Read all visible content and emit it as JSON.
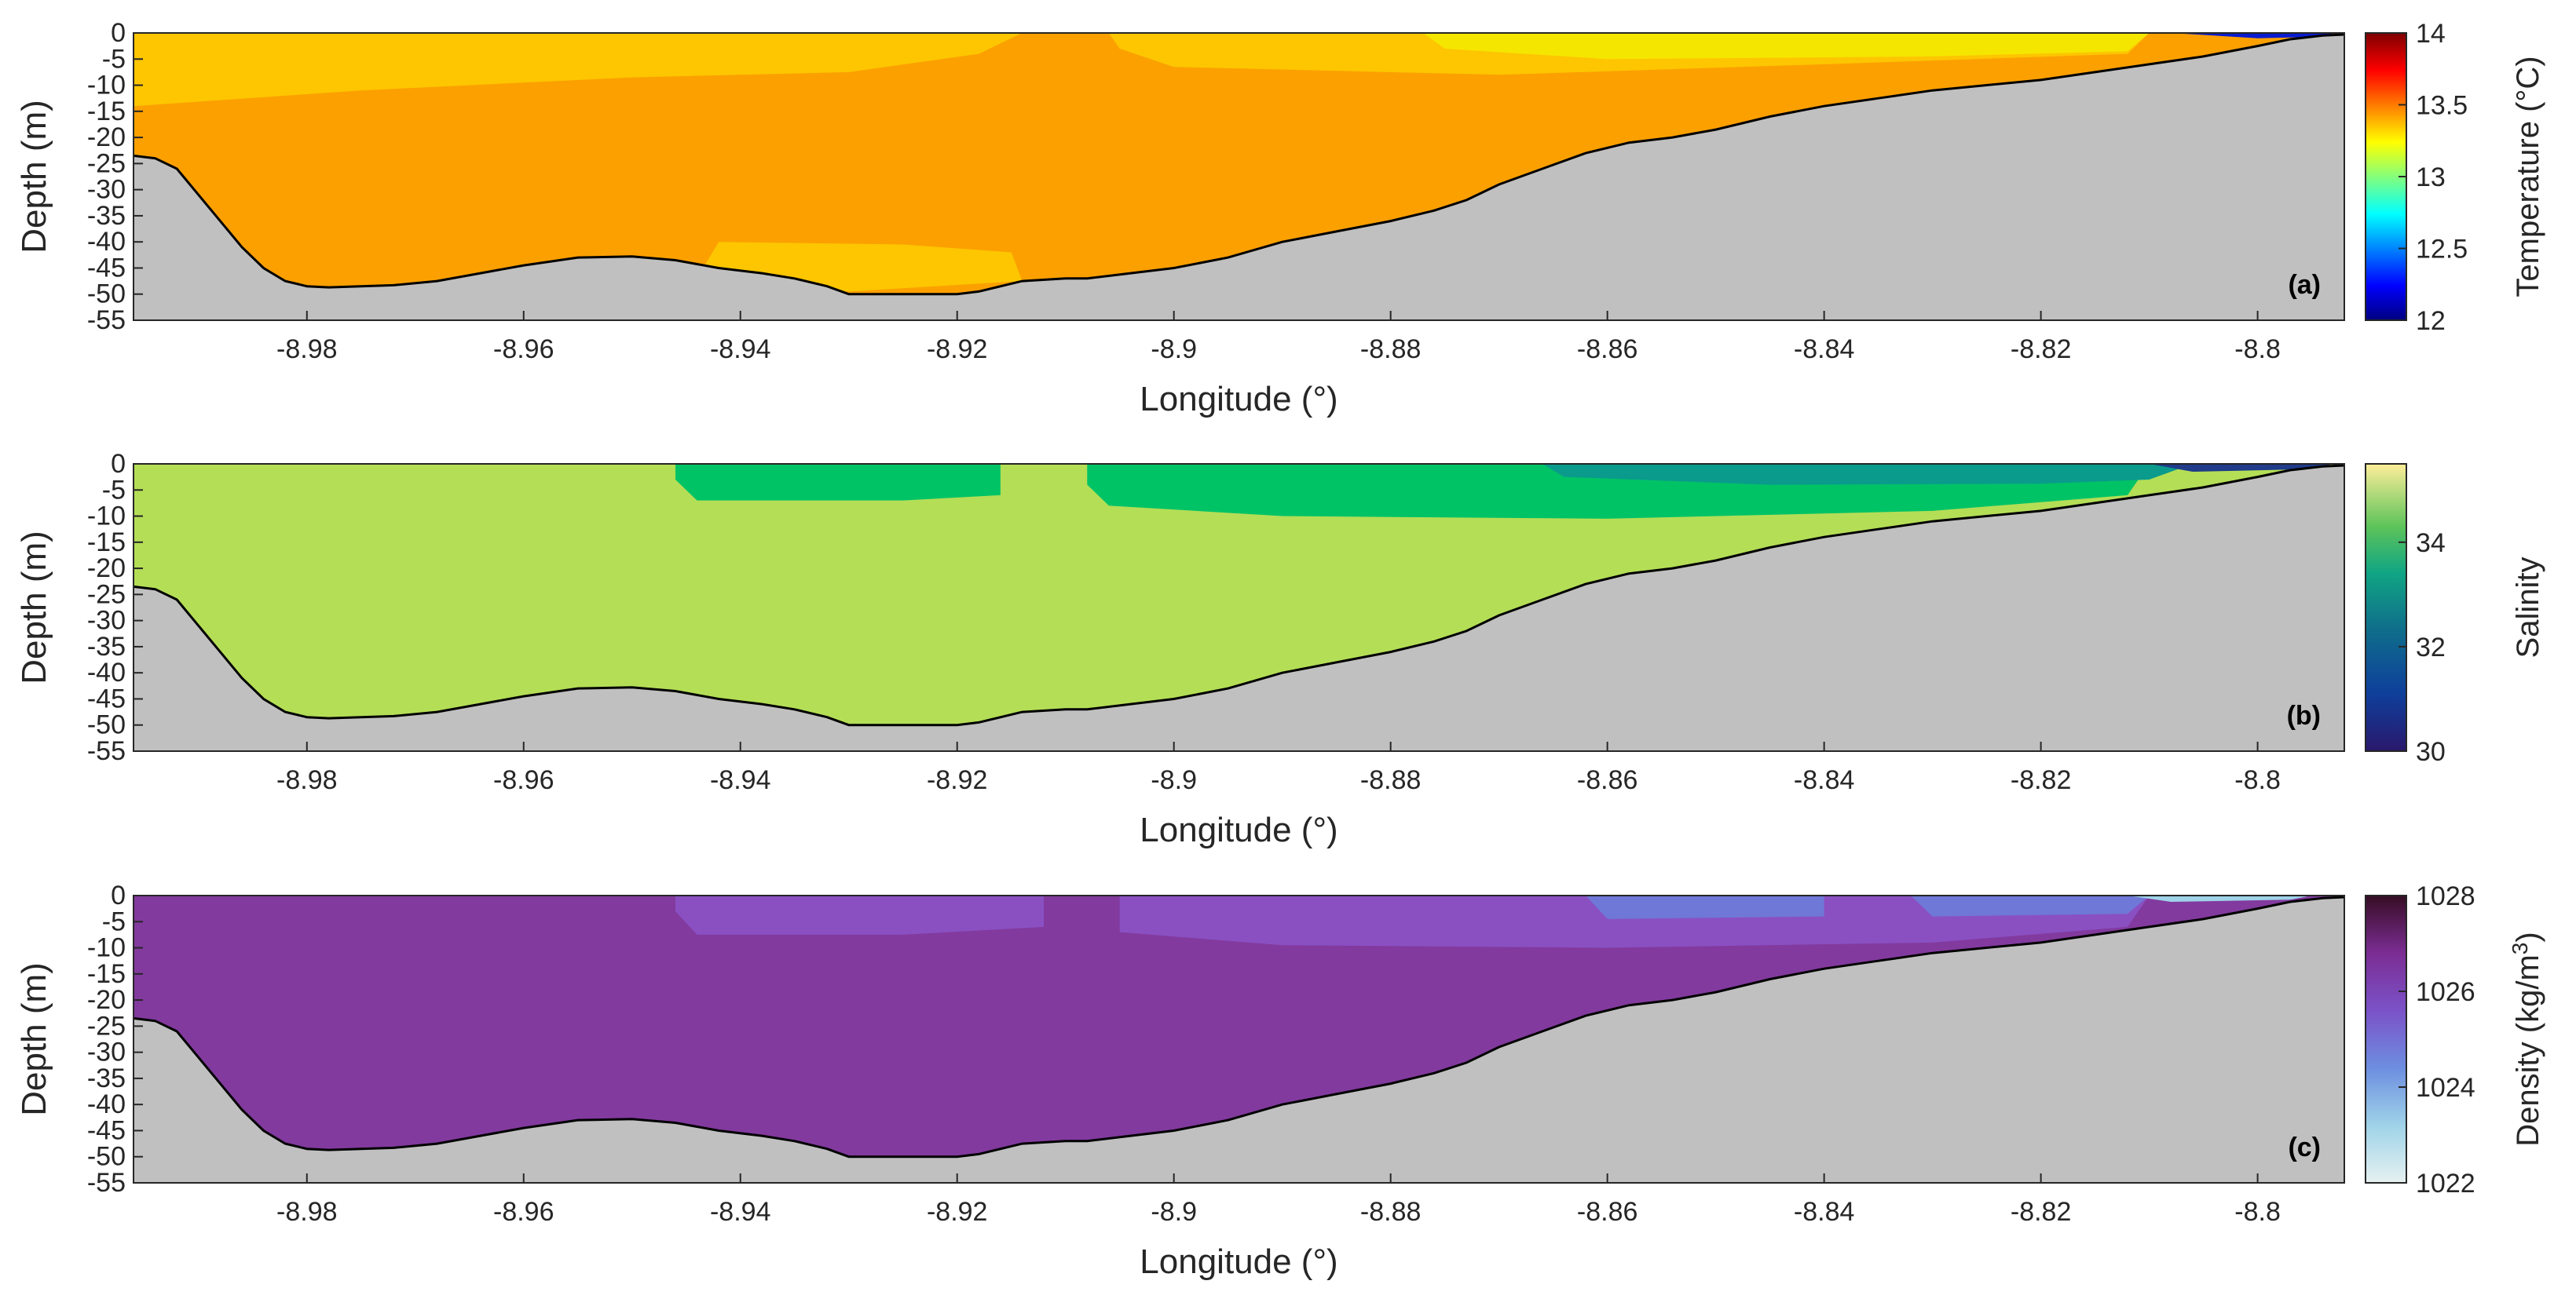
{
  "chart_data": [
    {
      "type": "heatmap",
      "panel_label": "(a)",
      "xlabel": "Longitude (°)",
      "ylabel": "Depth (m)",
      "colorbar_label": "Temperature (°C)",
      "colormap": "jet",
      "clim": [
        12,
        14
      ],
      "colorbar_ticks": [
        "14",
        "13.5",
        "13",
        "12.5",
        "12"
      ],
      "xlim": [
        -8.996,
        -8.792
      ],
      "ylim": [
        -55,
        0
      ],
      "xticks": [
        "-8.98",
        "-8.96",
        "-8.94",
        "-8.92",
        "-8.9",
        "-8.88",
        "-8.86",
        "-8.84",
        "-8.82",
        "-8.8"
      ],
      "yticks": [
        "0",
        "-5",
        "-10",
        "-15",
        "-20",
        "-25",
        "-30",
        "-35",
        "-40",
        "-45",
        "-50",
        "-55"
      ],
      "background_value": 13.7,
      "regions": [
        {
          "value": 13.45,
          "color": "#fdc600",
          "desc": "warm near-surface layer",
          "outline": [
            [
              -8.996,
              0
            ],
            [
              -8.914,
              0
            ],
            [
              -8.918,
              -4
            ],
            [
              -8.93,
              -7.5
            ],
            [
              -8.95,
              -8.5
            ],
            [
              -8.975,
              -11
            ],
            [
              -8.996,
              -14
            ]
          ]
        },
        {
          "value": 13.45,
          "color": "#fdc600",
          "desc": "surface band east",
          "outline": [
            [
              -8.906,
              0
            ],
            [
              -8.81,
              0
            ],
            [
              -8.812,
              -4
            ],
            [
              -8.84,
              -6
            ],
            [
              -8.87,
              -8
            ],
            [
              -8.9,
              -6.5
            ],
            [
              -8.905,
              -3
            ]
          ]
        },
        {
          "value": 13.2,
          "color": "#f5e600",
          "desc": "cool surface east",
          "outline": [
            [
              -8.877,
              0
            ],
            [
              -8.81,
              0
            ],
            [
              -8.812,
              -3.5
            ],
            [
              -8.83,
              -4.5
            ],
            [
              -8.86,
              -5
            ],
            [
              -8.875,
              -3
            ]
          ]
        },
        {
          "value": 12.3,
          "color": "#0a1cd0",
          "desc": "cold inshore lens",
          "outline": [
            [
              -8.808,
              0
            ],
            [
              -8.793,
              0
            ],
            [
              -8.7935,
              -0.7
            ],
            [
              -8.8,
              -1
            ]
          ]
        },
        {
          "value": 13.45,
          "color": "#fdc600",
          "desc": "near-bottom pocket",
          "outline": [
            [
              -8.942,
              -40
            ],
            [
              -8.925,
              -40.5
            ],
            [
              -8.915,
              -42
            ],
            [
              -8.914,
              -47.5
            ],
            [
              -8.93,
              -49.5
            ],
            [
              -8.944,
              -47
            ]
          ]
        }
      ],
      "bathymetry": {
        "lon": [
          -8.996,
          -8.994,
          -8.992,
          -8.99,
          -8.988,
          -8.986,
          -8.984,
          -8.982,
          -8.98,
          -8.978,
          -8.975,
          -8.972,
          -8.968,
          -8.964,
          -8.96,
          -8.955,
          -8.95,
          -8.946,
          -8.942,
          -8.938,
          -8.935,
          -8.932,
          -8.93,
          -8.925,
          -8.92,
          -8.918,
          -8.914,
          -8.91,
          -8.908,
          -8.904,
          -8.9,
          -8.895,
          -8.89,
          -8.885,
          -8.88,
          -8.876,
          -8.873,
          -8.87,
          -8.866,
          -8.862,
          -8.858,
          -8.854,
          -8.85,
          -8.845,
          -8.84,
          -8.835,
          -8.83,
          -8.825,
          -8.82,
          -8.815,
          -8.81,
          -8.805,
          -8.8,
          -8.797,
          -8.794,
          -8.792
        ],
        "depth": [
          -23.5,
          -24,
          -26,
          -31,
          -36,
          -41,
          -45,
          -47.5,
          -48.5,
          -48.7,
          -48.5,
          -48.3,
          -47.5,
          -46,
          -44.5,
          -43,
          -42.8,
          -43.5,
          -45,
          -46,
          -47,
          -48.5,
          -50,
          -50,
          -50,
          -49.5,
          -47.5,
          -47,
          -47,
          -46,
          -45,
          -43,
          -40,
          -38,
          -36,
          -34,
          -32,
          -29,
          -26,
          -23,
          -21,
          -20,
          -18.5,
          -16,
          -14,
          -12.5,
          -11,
          -10,
          -9,
          -7.5,
          -6,
          -4.5,
          -2.5,
          -1.2,
          -0.5,
          -0.3
        ]
      }
    },
    {
      "type": "heatmap",
      "panel_label": "(b)",
      "xlabel": "Longitude (°)",
      "ylabel": "Depth (m)",
      "colorbar_label": "Salinity",
      "colormap": "haline",
      "clim": [
        30,
        35.5
      ],
      "colorbar_ticks": [
        "34",
        "32",
        "30"
      ],
      "xlim": [
        -8.996,
        -8.792
      ],
      "ylim": [
        -55,
        0
      ],
      "xticks": [
        "-8.98",
        "-8.96",
        "-8.94",
        "-8.92",
        "-8.9",
        "-8.88",
        "-8.86",
        "-8.84",
        "-8.82",
        "-8.8"
      ],
      "yticks": [
        "0",
        "-5",
        "-10",
        "-15",
        "-20",
        "-25",
        "-30",
        "-35",
        "-40",
        "-45",
        "-50",
        "-55"
      ],
      "background_value": 35.0,
      "regions": [
        {
          "value": 34.2,
          "color": "#00c366",
          "desc": "fresher surface lens",
          "outline": [
            [
              -8.946,
              0
            ],
            [
              -8.916,
              0
            ],
            [
              -8.916,
              -6
            ],
            [
              -8.925,
              -7
            ],
            [
              -8.944,
              -7
            ],
            [
              -8.946,
              -3
            ]
          ]
        },
        {
          "value": 34.2,
          "color": "#00c366",
          "desc": "fresher surface lens east",
          "outline": [
            [
              -8.908,
              0
            ],
            [
              -8.81,
              0
            ],
            [
              -8.812,
              -6
            ],
            [
              -8.83,
              -9
            ],
            [
              -8.86,
              -10.5
            ],
            [
              -8.89,
              -10
            ],
            [
              -8.906,
              -8
            ],
            [
              -8.908,
              -4
            ]
          ]
        },
        {
          "value": 33.0,
          "color": "#0a9b8c",
          "desc": "brackish surface",
          "outline": [
            [
              -8.866,
              0
            ],
            [
              -8.806,
              0
            ],
            [
              -8.81,
              -3
            ],
            [
              -8.82,
              -3.8
            ],
            [
              -8.845,
              -4
            ],
            [
              -8.864,
              -2.5
            ]
          ]
        },
        {
          "value": 31.0,
          "color": "#1f3b8a",
          "desc": "estuarine plume",
          "outline": [
            [
              -8.81,
              0
            ],
            [
              -8.793,
              0
            ],
            [
              -8.795,
              -1
            ],
            [
              -8.806,
              -1.5
            ]
          ]
        }
      ],
      "bathymetry_same_as": "(a)"
    },
    {
      "type": "heatmap",
      "panel_label": "(c)",
      "xlabel": "Longitude (°)",
      "ylabel": "Depth (m)",
      "colorbar_label": "Density (kg/m",
      "colorbar_label_sup": "3",
      "colorbar_label_end": ")",
      "colormap": "dense",
      "clim": [
        1022,
        1028
      ],
      "colorbar_ticks": [
        "1028",
        "1026",
        "1024",
        "1022"
      ],
      "xlim": [
        -8.996,
        -8.792
      ],
      "ylim": [
        -55,
        0
      ],
      "xticks": [
        "-8.98",
        "-8.96",
        "-8.94",
        "-8.92",
        "-8.9",
        "-8.88",
        "-8.86",
        "-8.84",
        "-8.82",
        "-8.8"
      ],
      "yticks": [
        "0",
        "-5",
        "-10",
        "-15",
        "-20",
        "-25",
        "-30",
        "-35",
        "-40",
        "-45",
        "-50",
        "-55"
      ],
      "background_value": 1026.3,
      "regions": [
        {
          "value": 1025.9,
          "color": "#8a50c2",
          "desc": "lighter surface lens",
          "outline": [
            [
              -8.946,
              0
            ],
            [
              -8.912,
              0
            ],
            [
              -8.912,
              -6
            ],
            [
              -8.925,
              -7.5
            ],
            [
              -8.944,
              -7.5
            ],
            [
              -8.946,
              -3
            ]
          ]
        },
        {
          "value": 1025.9,
          "color": "#8a50c2",
          "desc": "lighter surface lens east",
          "outline": [
            [
              -8.905,
              0
            ],
            [
              -8.81,
              0
            ],
            [
              -8.812,
              -6
            ],
            [
              -8.83,
              -9
            ],
            [
              -8.86,
              -10
            ],
            [
              -8.89,
              -9.5
            ],
            [
              -8.905,
              -7
            ]
          ]
        },
        {
          "value": 1025.0,
          "color": "#6f78d6",
          "desc": "light surface east",
          "outline": [
            [
              -8.862,
              0
            ],
            [
              -8.84,
              0
            ],
            [
              -8.84,
              -4
            ],
            [
              -8.86,
              -4.5
            ]
          ]
        },
        {
          "value": 1025.0,
          "color": "#6f78d6",
          "desc": "light surface inshore",
          "outline": [
            [
              -8.832,
              0
            ],
            [
              -8.81,
              0
            ],
            [
              -8.812,
              -3.5
            ],
            [
              -8.83,
              -4
            ]
          ]
        },
        {
          "value": 1023.5,
          "color": "#9fd3e8",
          "desc": "plume",
          "outline": [
            [
              -8.812,
              0
            ],
            [
              -8.795,
              0
            ],
            [
              -8.797,
              -0.8
            ],
            [
              -8.808,
              -1.2
            ]
          ]
        }
      ],
      "bathymetry_same_as": "(a)"
    }
  ],
  "colors": {
    "land": "#c0c0c0",
    "outline": "#000000",
    "temperature_background": "#fca000",
    "salinity_background": "#b4de56",
    "density_background": "#823a9e"
  }
}
